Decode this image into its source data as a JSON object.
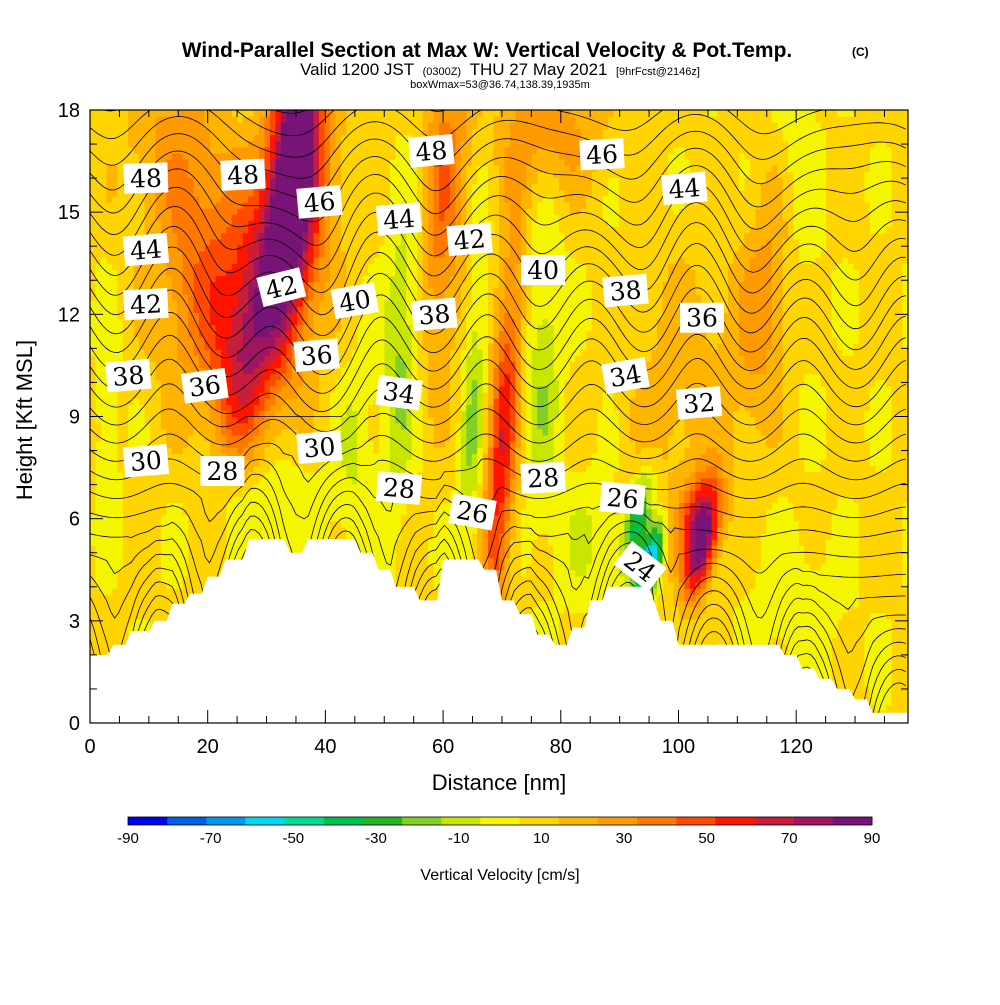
{
  "title": "Wind-Parallel Section at Max W: Vertical Velocity & Pot.Temp.",
  "copyright_mark": "(C)",
  "valid_line": {
    "prefix": "Valid 1200 JST",
    "utc": "(0300Z)",
    "date": "THU 27 May 2021",
    "forecast": "[9hrFcst@2146z]"
  },
  "box_line": "boxWmax=53@36.74,138.39,1935m",
  "colors": {
    "terrain": "#ffffff",
    "contour": "#000000",
    "palette": [
      "#0000f0",
      "#005fe6",
      "#0099f0",
      "#00d7f0",
      "#00dc8c",
      "#00c050",
      "#22b422",
      "#80d028",
      "#c8e600",
      "#f5f500",
      "#ffd400",
      "#ffb400",
      "#ff9a00",
      "#ff7800",
      "#ff4a00",
      "#ff1400",
      "#c81e3c",
      "#a01464",
      "#781478"
    ]
  },
  "chart_data": {
    "type": "heatmap",
    "xlabel": "Distance [nm]",
    "ylabel": "Height [Kft MSL]",
    "xlim": [
      0,
      139
    ],
    "ylim": [
      0,
      18
    ],
    "x_ticks": [
      "0",
      "20",
      "40",
      "60",
      "80",
      "100",
      "120"
    ],
    "y_ticks": [
      "0",
      "3",
      "6",
      "9",
      "12",
      "15",
      "18"
    ],
    "colorbar": {
      "label": "Vertical Velocity [cm/s]",
      "min": -90,
      "max": 90,
      "step": 10,
      "tick_labels": [
        "-90",
        "-70",
        "-50",
        "-30",
        "-10",
        "10",
        "30",
        "50",
        "70",
        "90"
      ]
    },
    "terrain_height_kft": [
      [
        0,
        2.0
      ],
      [
        3,
        2.0
      ],
      [
        4,
        2.3
      ],
      [
        6,
        2.3
      ],
      [
        7,
        2.7
      ],
      [
        10,
        2.7
      ],
      [
        11,
        3.0
      ],
      [
        13,
        3.0
      ],
      [
        14,
        3.5
      ],
      [
        16,
        3.5
      ],
      [
        17,
        3.8
      ],
      [
        19,
        3.8
      ],
      [
        20,
        4.3
      ],
      [
        22,
        4.3
      ],
      [
        23,
        4.8
      ],
      [
        26,
        4.8
      ],
      [
        27,
        5.4
      ],
      [
        33,
        5.4
      ],
      [
        34,
        5.0
      ],
      [
        36,
        5.0
      ],
      [
        37,
        5.4
      ],
      [
        45,
        5.4
      ],
      [
        46,
        5.0
      ],
      [
        48,
        5.0
      ],
      [
        49,
        4.5
      ],
      [
        51,
        4.5
      ],
      [
        52,
        4.0
      ],
      [
        55,
        4.0
      ],
      [
        56,
        3.6
      ],
      [
        59,
        3.6
      ],
      [
        60,
        4.8
      ],
      [
        66,
        4.8
      ],
      [
        67,
        4.5
      ],
      [
        69,
        4.5
      ],
      [
        70,
        3.6
      ],
      [
        72,
        3.6
      ],
      [
        73,
        3.2
      ],
      [
        75,
        3.2
      ],
      [
        76,
        2.6
      ],
      [
        78,
        2.6
      ],
      [
        79,
        2.3
      ],
      [
        81,
        2.3
      ],
      [
        82,
        2.8
      ],
      [
        84,
        2.8
      ],
      [
        85,
        3.6
      ],
      [
        87,
        3.6
      ],
      [
        88,
        4.0
      ],
      [
        95,
        4.0
      ],
      [
        97,
        3.0
      ],
      [
        99,
        3.0
      ],
      [
        100,
        2.3
      ],
      [
        117,
        2.3
      ],
      [
        118,
        2.0
      ],
      [
        120,
        2.0
      ],
      [
        121,
        1.6
      ],
      [
        123,
        1.6
      ],
      [
        124,
        1.3
      ],
      [
        126,
        1.3
      ],
      [
        127,
        1.0
      ],
      [
        129,
        1.0
      ],
      [
        130,
        0.7
      ],
      [
        132,
        0.7
      ],
      [
        133,
        0.3
      ],
      [
        139,
        0.3
      ]
    ],
    "updrafts": [
      {
        "x": 35,
        "z": 17.0,
        "w": 90,
        "sx": 4,
        "sz": 4,
        "tilt": 0.25
      },
      {
        "x": 33,
        "z": 13.5,
        "w": 55,
        "sx": 7,
        "sz": 4,
        "tilt": 0.3
      },
      {
        "x": 20,
        "z": 13.0,
        "w": 35,
        "sx": 8,
        "sz": 3.5,
        "tilt": 0.2
      },
      {
        "x": 26,
        "z": 10.5,
        "w": 40,
        "sx": 5,
        "sz": 3,
        "tilt": 0.2
      },
      {
        "x": 14,
        "z": 17.0,
        "w": 20,
        "sx": 8,
        "sz": 3,
        "tilt": 0
      },
      {
        "x": 70,
        "z": 8.0,
        "w": 55,
        "sx": 2.5,
        "sz": 6,
        "tilt": 0.15
      },
      {
        "x": 60,
        "z": 15.5,
        "w": 35,
        "sx": 4,
        "sz": 5,
        "tilt": 0.1
      },
      {
        "x": 78,
        "z": 17.5,
        "w": 25,
        "sx": 9,
        "sz": 2,
        "tilt": 0
      },
      {
        "x": 104,
        "z": 5.2,
        "w": 85,
        "sx": 2.5,
        "sz": 1.5,
        "tilt": 0.5
      },
      {
        "x": 103,
        "z": 6.3,
        "w": 40,
        "sx": 3,
        "sz": 1.2,
        "tilt": 0.6
      },
      {
        "x": 115,
        "z": 12.5,
        "w": 25,
        "sx": 5,
        "sz": 4,
        "tilt": 0.3
      },
      {
        "x": 100,
        "z": 10.0,
        "w": 15,
        "sx": 8,
        "sz": 4,
        "tilt": 0.3
      }
    ],
    "downdrafts": [
      {
        "x": 95,
        "z": 4.6,
        "w": -80,
        "sx": 1.8,
        "sz": 1.2,
        "tilt": 0.6
      },
      {
        "x": 93,
        "z": 6.0,
        "w": -45,
        "sx": 2.0,
        "sz": 1.5,
        "tilt": 0.5
      },
      {
        "x": 53,
        "z": 11.0,
        "w": -25,
        "sx": 3,
        "sz": 4.5,
        "tilt": 0.1
      },
      {
        "x": 65,
        "z": 9.0,
        "w": -22,
        "sx": 2,
        "sz": 6,
        "tilt": 0.1
      },
      {
        "x": 77,
        "z": 10.5,
        "w": -20,
        "sx": 3,
        "sz": 4.5,
        "tilt": 0.05
      },
      {
        "x": 30,
        "z": 6.5,
        "w": -15,
        "sx": 9,
        "sz": 1.5,
        "tilt": 0
      },
      {
        "x": 3,
        "z": 9.0,
        "w": -12,
        "sx": 2,
        "sz": 3,
        "tilt": 0
      },
      {
        "x": 120,
        "z": 15.5,
        "w": -15,
        "sx": 4,
        "sz": 4,
        "tilt": 0
      },
      {
        "x": 85,
        "z": 5.5,
        "w": -12,
        "sx": 6,
        "sz": 2,
        "tilt": 0
      },
      {
        "x": 120,
        "z": 3.5,
        "w": -10,
        "sx": 8,
        "sz": 2,
        "tilt": 0
      },
      {
        "x": 45,
        "z": 8.0,
        "w": -12,
        "sx": 3,
        "sz": 3,
        "tilt": 0.1
      }
    ],
    "theta_labels": [
      {
        "value": "48",
        "x": 9.5,
        "z": 16.0,
        "angle": -2
      },
      {
        "value": "48",
        "x": 26,
        "z": 16.1,
        "angle": -3
      },
      {
        "value": "46",
        "x": 39,
        "z": 15.3,
        "angle": -5
      },
      {
        "value": "48",
        "x": 58,
        "z": 16.8,
        "angle": -5
      },
      {
        "value": "46",
        "x": 87,
        "z": 16.7,
        "angle": -3
      },
      {
        "value": "44",
        "x": 101,
        "z": 15.7,
        "angle": -5
      },
      {
        "value": "44",
        "x": 9.5,
        "z": 13.9,
        "angle": -5
      },
      {
        "value": "44",
        "x": 52.5,
        "z": 14.8,
        "angle": -5
      },
      {
        "value": "42",
        "x": 64.5,
        "z": 14.2,
        "angle": -5
      },
      {
        "value": "40",
        "x": 77,
        "z": 13.3,
        "angle": 0
      },
      {
        "value": "42",
        "x": 9.5,
        "z": 12.3,
        "angle": -3
      },
      {
        "value": "42",
        "x": 32.5,
        "z": 12.8,
        "angle": -14
      },
      {
        "value": "40",
        "x": 45,
        "z": 12.4,
        "angle": -10
      },
      {
        "value": "38",
        "x": 58.5,
        "z": 12.0,
        "angle": -5
      },
      {
        "value": "38",
        "x": 91,
        "z": 12.7,
        "angle": -5
      },
      {
        "value": "36",
        "x": 104,
        "z": 11.9,
        "angle": 0
      },
      {
        "value": "38",
        "x": 6.5,
        "z": 10.2,
        "angle": -5
      },
      {
        "value": "36",
        "x": 19.5,
        "z": 9.9,
        "angle": -8
      },
      {
        "value": "36",
        "x": 38.5,
        "z": 10.8,
        "angle": -5
      },
      {
        "value": "34",
        "x": 52.5,
        "z": 9.7,
        "angle": 8
      },
      {
        "value": "34",
        "x": 91,
        "z": 10.2,
        "angle": -10
      },
      {
        "value": "32",
        "x": 103.5,
        "z": 9.4,
        "angle": -5
      },
      {
        "value": "30",
        "x": 9.5,
        "z": 7.7,
        "angle": -5
      },
      {
        "value": "28",
        "x": 22.5,
        "z": 7.4,
        "angle": 0
      },
      {
        "value": "30",
        "x": 39,
        "z": 8.1,
        "angle": -5
      },
      {
        "value": "28",
        "x": 52.5,
        "z": 6.9,
        "angle": 5
      },
      {
        "value": "26",
        "x": 65,
        "z": 6.2,
        "angle": 10
      },
      {
        "value": "28",
        "x": 77,
        "z": 7.2,
        "angle": -3
      },
      {
        "value": "26",
        "x": 90.5,
        "z": 6.6,
        "angle": 5
      },
      {
        "value": "24",
        "x": 93.5,
        "z": 4.6,
        "angle": 38
      }
    ]
  }
}
